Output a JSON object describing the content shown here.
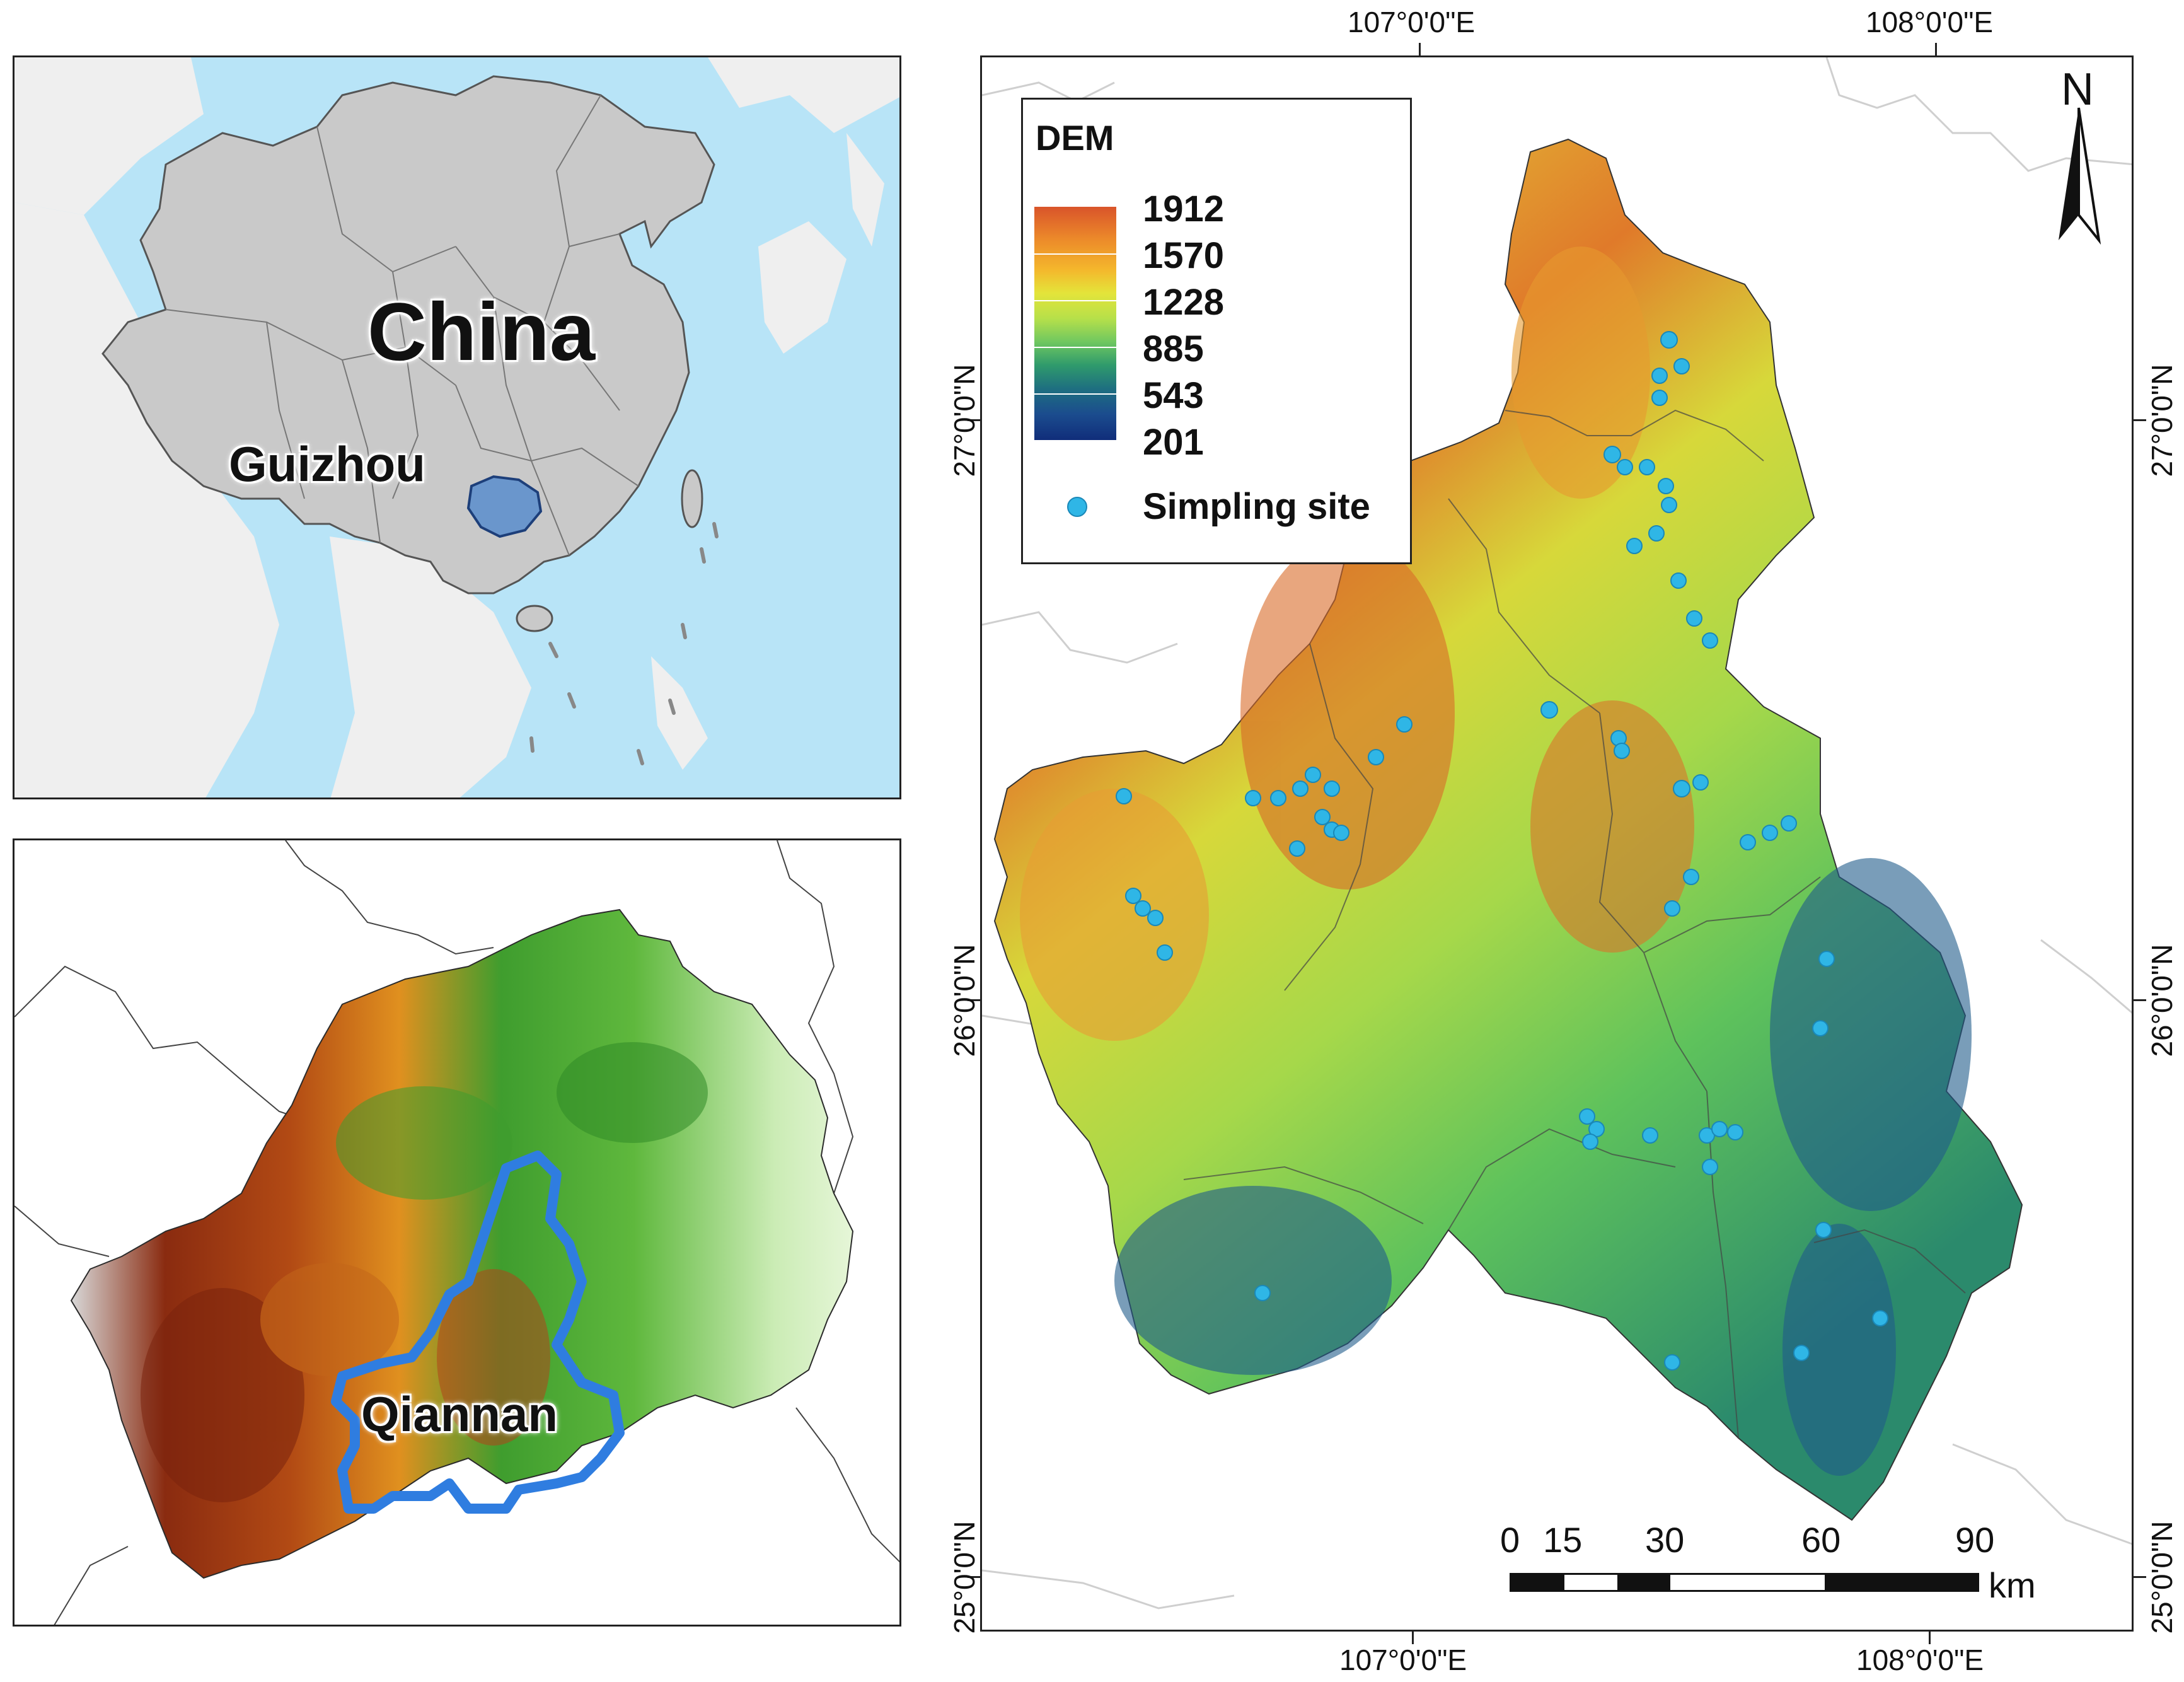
{
  "inset_china": {
    "country_label": "China",
    "province_label": "Guizhou"
  },
  "inset_guizhou": {
    "prefecture_label": "Qiannan"
  },
  "main_map": {
    "top_axis": [
      "107°0'0\"E",
      "108°0'0\"E"
    ],
    "bottom_axis": [
      "107°0'0\"E",
      "108°0'0\"E"
    ],
    "left_axis": [
      "27°0'0\"N",
      "26°0'0\"N",
      "25°0'0\"N"
    ],
    "right_axis": [
      "27°0'0\"N",
      "26°0'0\"N",
      "25°0'0\"N"
    ],
    "north_arrow": "N",
    "legend": {
      "title": "DEM",
      "values": [
        "1912",
        "1570",
        "1228",
        "885",
        "543",
        "201"
      ],
      "site_label": "Simpling site"
    },
    "scale_bar": {
      "ticks": [
        "0",
        "15",
        "30",
        "60",
        "90"
      ],
      "unit": "km"
    }
  },
  "colors": {
    "ocean": "#b8e4f7",
    "china_fill": "#c9c9c9",
    "guizhou_fill": "#6a96cc",
    "qiannan_outline": "#2f7de0",
    "site_dot": "#2fb6e6"
  }
}
